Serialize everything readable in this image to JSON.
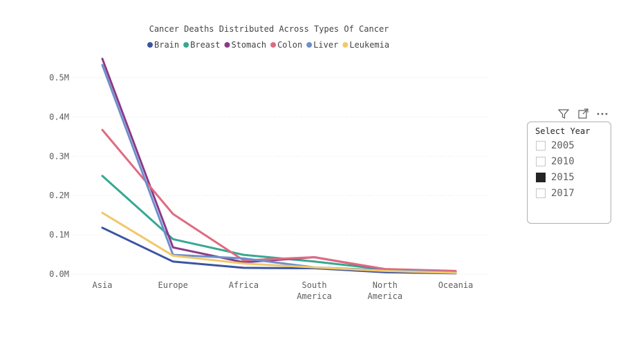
{
  "chart_data": {
    "type": "line",
    "title": "Cancer Deaths Distributed Across Types Of Cancer",
    "categories": [
      "Asia",
      "Europe",
      "Africa",
      "South America",
      "North America",
      "Oceania"
    ],
    "y_tick_labels": [
      "0.0M",
      "0.1M",
      "0.2M",
      "0.3M",
      "0.4M",
      "0.5M"
    ],
    "ylim": [
      0,
      550000
    ],
    "grid": true,
    "legend_position": "top",
    "series": [
      {
        "name": "Brain",
        "color": "#3b54a0",
        "values": [
          118000,
          32000,
          16000,
          15000,
          5000,
          2000
        ]
      },
      {
        "name": "Breast",
        "color": "#36a891",
        "values": [
          250000,
          89000,
          49000,
          32000,
          12000,
          6000
        ]
      },
      {
        "name": "Stomach",
        "color": "#8b3a88",
        "values": [
          548000,
          68000,
          30000,
          43000,
          12000,
          5000
        ]
      },
      {
        "name": "Colon",
        "color": "#e06a80",
        "values": [
          367000,
          153000,
          35000,
          43000,
          13000,
          8000
        ]
      },
      {
        "name": "Liver",
        "color": "#6d8fcb",
        "values": [
          532000,
          49000,
          40000,
          17000,
          10000,
          4000
        ]
      },
      {
        "name": "Leukemia",
        "color": "#f1c86b",
        "values": [
          156000,
          47000,
          27000,
          17000,
          8000,
          3000
        ]
      }
    ]
  },
  "slicer": {
    "header": "Select Year",
    "items": [
      {
        "label": "2005",
        "checked": false
      },
      {
        "label": "2010",
        "checked": false
      },
      {
        "label": "2015",
        "checked": true
      },
      {
        "label": "2017",
        "checked": false
      }
    ],
    "tools": [
      "filter-icon",
      "focus-mode-icon",
      "more-options-icon"
    ]
  }
}
